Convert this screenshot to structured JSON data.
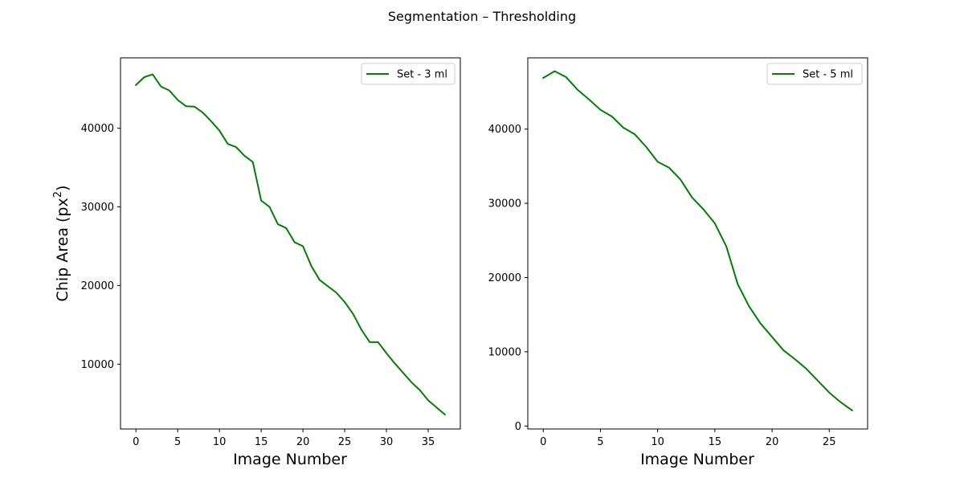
{
  "figure": {
    "suptitle": "Segmentation – Thresholding"
  },
  "chart_data": [
    {
      "type": "line",
      "title": "",
      "xlabel": "Image Number",
      "ylabel_main": "Chip Area (px",
      "ylabel_sup": "2",
      "ylabel_end": ")",
      "xlim": [
        -1.85,
        38.85
      ],
      "ylim": [
        1760,
        48950
      ],
      "xticks": [
        0,
        5,
        10,
        15,
        20,
        25,
        30,
        35
      ],
      "yticks": [
        10000,
        20000,
        30000,
        40000
      ],
      "grid": false,
      "legend_position": "upper right",
      "series": [
        {
          "name": "Set - 3 ml",
          "color": "#008000",
          "x": [
            0,
            1,
            2,
            3,
            4,
            5,
            6,
            7,
            8,
            9,
            10,
            11,
            12,
            13,
            14,
            15,
            16,
            17,
            18,
            19,
            20,
            21,
            22,
            23,
            24,
            25,
            26,
            27,
            28,
            29,
            30,
            31,
            32,
            33,
            34,
            35,
            36,
            37
          ],
          "y": [
            45500,
            46500,
            46850,
            45300,
            44800,
            43600,
            42800,
            42750,
            42000,
            40900,
            39700,
            38000,
            37600,
            36500,
            35700,
            30800,
            30000,
            27800,
            27300,
            25500,
            25000,
            22500,
            20700,
            19900,
            19100,
            17900,
            16400,
            14400,
            12800,
            12800,
            11400,
            10100,
            8900,
            7700,
            6700,
            5400,
            4500,
            3600
          ]
        }
      ]
    },
    {
      "type": "line",
      "title": "",
      "xlabel": "Image Number",
      "ylabel_main": "",
      "ylabel_sup": "",
      "ylabel_end": "",
      "xlim": [
        -1.35,
        28.35
      ],
      "ylim": [
        -400,
        49600
      ],
      "xticks": [
        0,
        5,
        10,
        15,
        20,
        25
      ],
      "yticks": [
        0,
        10000,
        20000,
        30000,
        40000
      ],
      "grid": false,
      "legend_position": "upper right",
      "series": [
        {
          "name": "Set - 5 ml",
          "color": "#008000",
          "x": [
            0,
            1,
            2,
            3,
            4,
            5,
            6,
            7,
            8,
            9,
            10,
            11,
            12,
            13,
            14,
            15,
            16,
            17,
            18,
            19,
            20,
            21,
            22,
            23,
            24,
            25,
            26,
            27
          ],
          "y": [
            46900,
            47800,
            47000,
            45300,
            44000,
            42600,
            41700,
            40200,
            39300,
            37600,
            35600,
            34800,
            33200,
            30800,
            29200,
            27300,
            24200,
            19100,
            16100,
            13800,
            12000,
            10200,
            9000,
            7700,
            6100,
            4500,
            3200,
            2100
          ]
        }
      ]
    }
  ]
}
